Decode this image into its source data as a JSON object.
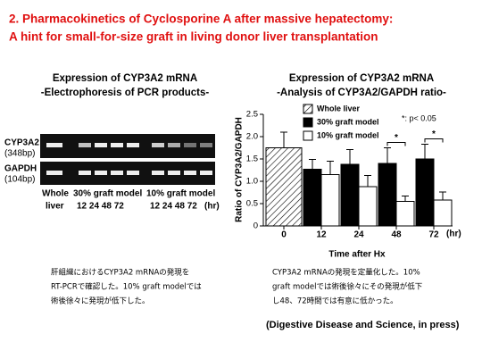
{
  "header": {
    "title_lines": [
      "2. Pharmacokinetics of Cyclosporine A after massive hepatectomy:",
      "A hint for small-for-size graft in living donor liver transplantation"
    ]
  },
  "gel_panel": {
    "heading": "Expression of CYP3A2 mRNA",
    "subheading": "-Electrophoresis of PCR products-",
    "rows": [
      {
        "name": "CYP3A2",
        "size": "(348bp)"
      },
      {
        "name": "GAPDH",
        "size": "(104bp)"
      }
    ],
    "groups": [
      "Whole",
      "30% graft model",
      "10% graft model"
    ],
    "whole_sub": "liver",
    "lane_labels": [
      "12 24 48 72",
      "12 24 48 72"
    ],
    "unit": "(hr)"
  },
  "chart_data": {
    "type": "bar",
    "title": "Expression of CYP3A2 mRNA",
    "subtitle": "-Analysis of CYP3A2/GAPDH ratio-",
    "y_label": "Ratio of CYP3A2/GAPDH",
    "x_label": "Time after Hx",
    "x_unit": "(hr)",
    "categories": [
      "0",
      "12",
      "24",
      "48",
      "72"
    ],
    "series": [
      {
        "name": "Whole liver",
        "color": "#000000",
        "pattern": "hatch",
        "values": [
          1.75,
          null,
          null,
          null,
          null
        ],
        "errors": [
          0.35,
          null,
          null,
          null,
          null
        ]
      },
      {
        "name": "30% graft model",
        "color": "#000000",
        "values": [
          null,
          1.27,
          1.38,
          1.4,
          1.5
        ],
        "errors": [
          null,
          0.22,
          0.33,
          0.35,
          0.33
        ]
      },
      {
        "name": "10% graft model",
        "color": "#ffffff",
        "values": [
          null,
          1.15,
          0.88,
          0.55,
          0.58
        ],
        "errors": [
          null,
          0.3,
          0.25,
          0.12,
          0.18
        ]
      }
    ],
    "ylim": [
      0,
      2.5
    ],
    "yticks": [
      0,
      0.5,
      {
        "value": 1,
        "label": "1.0"
      },
      1.5,
      {
        "value": 2,
        "label": "2.0"
      },
      2.5
    ],
    "significance_note": "*: p< 0.05",
    "significance": [
      {
        "category": "48",
        "label": "*"
      },
      {
        "category": "72",
        "label": "*"
      }
    ]
  },
  "captions": {
    "left": [
      "肝組織におけるCYP3A2 mRNAの発現を",
      "RT-PCRで確認した。10% graft modelでは",
      "術後徐々に発現が低下した。"
    ],
    "right": [
      "CYP3A2 mRNAの発現を定量化した。10%",
      "graft modelでは術後徐々にその発現が低下",
      "し48、72時間では有意に低かった。"
    ],
    "citation": "(Digestive Disease and Science, in press)"
  }
}
